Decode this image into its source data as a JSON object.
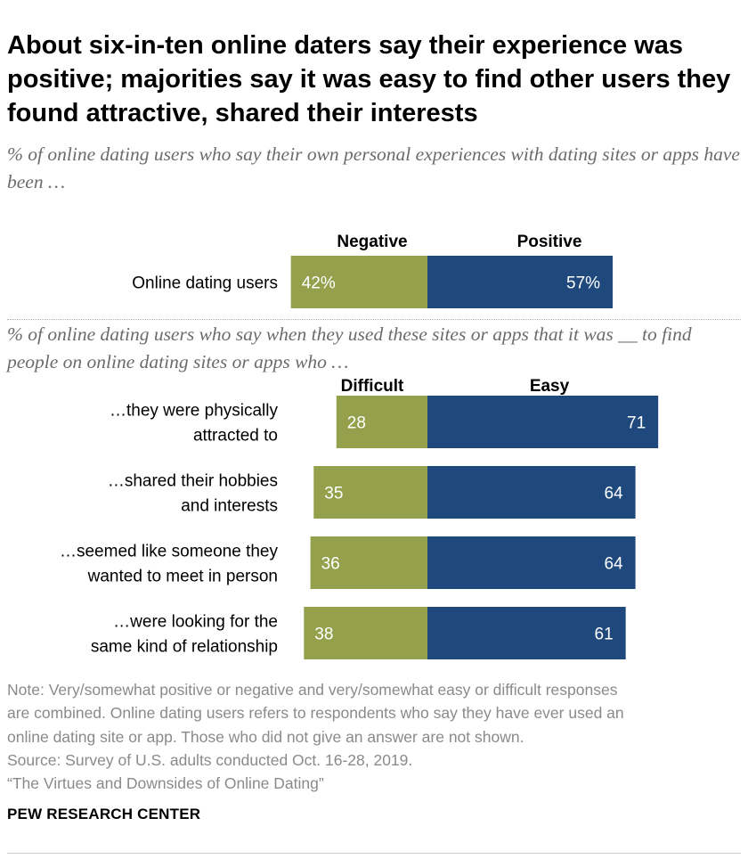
{
  "title": "About six-in-ten online daters say their experience was positive; majorities say it was easy to find other users they found attractive, shared their interests",
  "subtitle1": "% of online dating users who say their own personal experiences with dating sites or apps have been …",
  "subtitle2": "% of online dating users who say when they used these sites or apps that it was __ to find people on online dating sites or apps who …",
  "colors": {
    "negative": "#94a04b",
    "positive": "#1f497d"
  },
  "chart_data": [
    {
      "type": "bar",
      "orientation": "horizontal-diverging",
      "legend": [
        "Negative",
        "Positive"
      ],
      "categories": [
        [
          "Online dating users"
        ]
      ],
      "series": [
        {
          "name": "Negative",
          "values": [
            42
          ],
          "labels": [
            "42%"
          ]
        },
        {
          "name": "Positive",
          "values": [
            57
          ],
          "labels": [
            "57%"
          ]
        }
      ]
    },
    {
      "type": "bar",
      "orientation": "horizontal-diverging",
      "legend": [
        "Difficult",
        "Easy"
      ],
      "categories": [
        [
          "…they were physically",
          "attracted to"
        ],
        [
          "…shared their hobbies",
          "and interests"
        ],
        [
          "…seemed like someone they",
          "wanted to meet in person"
        ],
        [
          "…were looking for the",
          "same kind of relationship"
        ]
      ],
      "series": [
        {
          "name": "Difficult",
          "values": [
            28,
            35,
            36,
            38
          ],
          "labels": [
            "28",
            "35",
            "36",
            "38"
          ]
        },
        {
          "name": "Easy",
          "values": [
            71,
            64,
            64,
            61
          ],
          "labels": [
            "71",
            "64",
            "64",
            "61"
          ]
        }
      ]
    }
  ],
  "notes": [
    "Note: Very/somewhat positive or negative and very/somewhat easy or difficult responses",
    "are combined. Online dating users refers to respondents who say they have ever used an",
    "online dating site or app. Those who did not give an answer are not shown.",
    "Source: Survey of U.S. adults conducted Oct. 16-28, 2019.",
    "“The Virtues and Downsides of Online Dating”"
  ],
  "source_org": "PEW RESEARCH CENTER"
}
